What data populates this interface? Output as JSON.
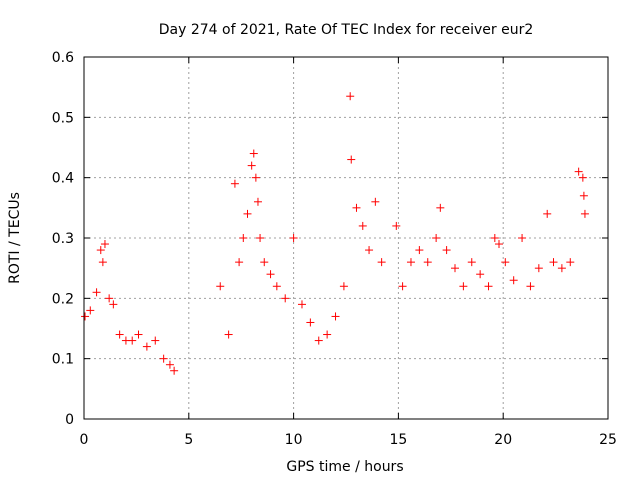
{
  "chart_data": {
    "type": "scatter",
    "title": "Day 274 of 2021, Rate Of TEC Index for receiver eur2",
    "xlabel": "GPS time / hours",
    "ylabel": "ROTI / TECUs",
    "xlim": [
      0,
      25
    ],
    "ylim": [
      0,
      0.6
    ],
    "x_ticks": [
      "0",
      "5",
      "10",
      "15",
      "20",
      "25"
    ],
    "y_ticks": [
      "0",
      "0.1",
      "0.2",
      "0.3",
      "0.4",
      "0.5",
      "0.6"
    ],
    "grid": true,
    "marker": "+",
    "color": "#ff0000",
    "series": [
      {
        "x": [
          0.05,
          0.3,
          0.6,
          0.8,
          0.9,
          1.0,
          1.2,
          1.4,
          1.7,
          2.0,
          2.3,
          2.6,
          3.0,
          3.4,
          3.8,
          4.1,
          4.3,
          6.5,
          6.9,
          7.2,
          7.4,
          7.6,
          7.8,
          8.0,
          8.1,
          8.2,
          8.3,
          8.4,
          8.6,
          8.9,
          9.2,
          9.6,
          10.0,
          10.4,
          10.8,
          11.2,
          11.6,
          12.0,
          12.4,
          12.7,
          12.75,
          13.0,
          13.3,
          13.6,
          13.9,
          14.2,
          14.9,
          15.2,
          15.6,
          16.0,
          16.4,
          16.8,
          17.0,
          17.3,
          17.7,
          18.1,
          18.5,
          18.9,
          19.3,
          19.6,
          19.8,
          20.1,
          20.5,
          20.9,
          21.3,
          21.7,
          22.1,
          22.4,
          22.8,
          23.2,
          23.6,
          23.8,
          23.85,
          23.9
        ],
        "y": [
          0.17,
          0.18,
          0.21,
          0.28,
          0.26,
          0.29,
          0.2,
          0.19,
          0.14,
          0.13,
          0.13,
          0.14,
          0.12,
          0.13,
          0.1,
          0.09,
          0.08,
          0.22,
          0.14,
          0.39,
          0.26,
          0.3,
          0.34,
          0.42,
          0.44,
          0.4,
          0.36,
          0.3,
          0.26,
          0.24,
          0.22,
          0.2,
          0.3,
          0.19,
          0.16,
          0.13,
          0.14,
          0.17,
          0.22,
          0.535,
          0.43,
          0.35,
          0.32,
          0.28,
          0.36,
          0.26,
          0.32,
          0.22,
          0.26,
          0.28,
          0.26,
          0.3,
          0.35,
          0.28,
          0.25,
          0.22,
          0.26,
          0.24,
          0.22,
          0.3,
          0.29,
          0.26,
          0.23,
          0.3,
          0.22,
          0.25,
          0.34,
          0.26,
          0.25,
          0.26,
          0.41,
          0.4,
          0.37,
          0.34
        ]
      }
    ]
  }
}
